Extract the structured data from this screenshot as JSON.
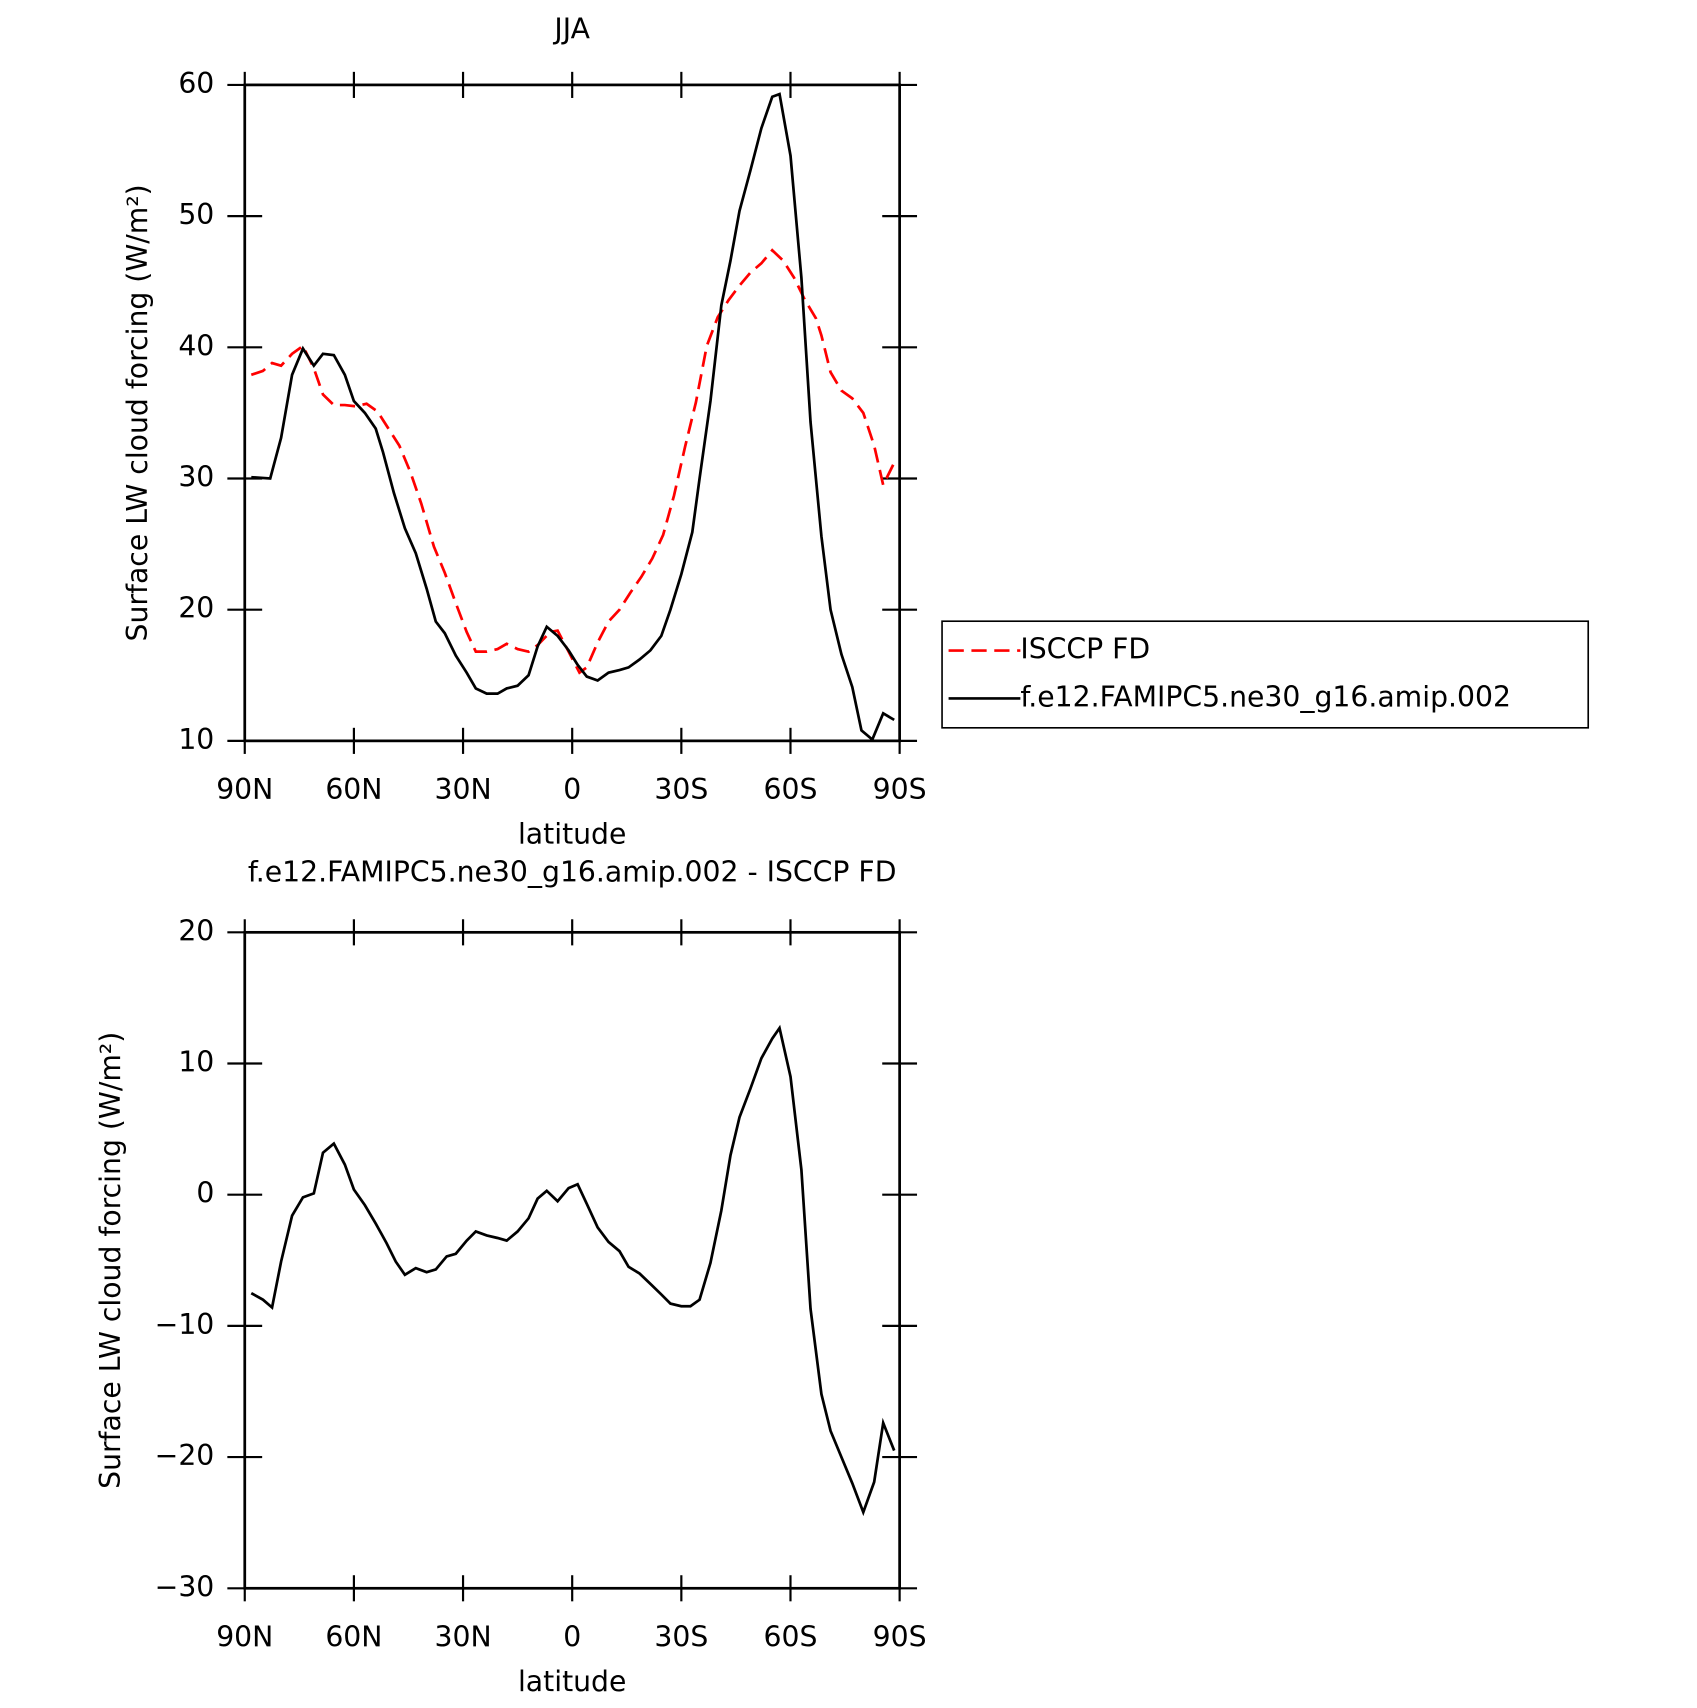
{
  "chart_data": [
    {
      "type": "line",
      "title": "JJA",
      "xlabel": "latitude",
      "ylabel": "Surface LW cloud forcing (W/m²)",
      "xlim": [
        90,
        -90
      ],
      "xticks": [
        {
          "value": 90,
          "label": "90N"
        },
        {
          "value": 60,
          "label": "60N"
        },
        {
          "value": 30,
          "label": "30N"
        },
        0,
        {
          "value": -30,
          "label": "30S"
        },
        {
          "value": -60,
          "label": "60S"
        },
        {
          "value": -90,
          "label": "90S"
        }
      ],
      "ylim": [
        10,
        60
      ],
      "yticks": [
        10,
        20,
        30,
        40,
        50,
        60
      ],
      "legend": "outside-right",
      "series": [
        {
          "name": "ISCCP FD",
          "color": "#ff0000",
          "dash": true,
          "x": [
            88.2,
            85,
            82.5,
            80,
            77,
            74,
            71,
            68.5,
            65.5,
            62.5,
            59.5,
            56.5,
            53.5,
            50.5,
            47.5,
            44.5,
            41.5,
            38,
            35,
            32,
            29,
            26.5,
            23.5,
            20.5,
            18,
            15,
            12,
            9.5,
            6,
            4,
            1,
            -2,
            -4,
            -7,
            -10,
            -13,
            -16,
            -19,
            -22,
            -25,
            -28,
            -31,
            -34,
            -37,
            -40,
            -43,
            -46,
            -49,
            -52,
            -55,
            -58,
            -61,
            -64,
            -67,
            -68.5,
            -71,
            -74,
            -77,
            -80,
            -83,
            -85.5,
            -88.5
          ],
          "values": [
            37.9,
            38.2,
            38.8,
            38.6,
            39.5,
            40.1,
            38.4,
            36.4,
            35.6,
            35.6,
            35.5,
            35.7,
            35.1,
            33.8,
            32.5,
            30.5,
            28.1,
            24.8,
            22.8,
            20.5,
            18.3,
            16.8,
            16.8,
            17,
            17.4,
            17,
            16.8,
            17.3,
            18.3,
            18.4,
            16.8,
            15.2,
            15.6,
            17.5,
            19.1,
            20,
            21.3,
            22.5,
            23.9,
            25.7,
            28.7,
            32.4,
            35.8,
            40.1,
            42.3,
            43.6,
            44.7,
            45.7,
            46.4,
            47.4,
            46.6,
            45.3,
            43.6,
            42.2,
            40.9,
            38.1,
            36.7,
            36.1,
            35,
            32.5,
            29.5,
            31.2
          ]
        },
        {
          "name": "f.e12.FAMIPC5.ne30_g16.amip.002",
          "color": "#000000",
          "dash": false,
          "x": [
            88.2,
            83,
            80,
            77,
            74,
            71,
            68.5,
            65.5,
            62.5,
            60,
            57,
            54,
            52,
            49,
            46,
            43,
            40,
            37.5,
            35,
            32,
            29,
            26.5,
            23.5,
            20.5,
            18,
            15,
            12,
            9.5,
            7,
            4,
            1,
            -1.5,
            -4,
            -7,
            -10,
            -13,
            -15.5,
            -18.5,
            -21.5,
            -24.5,
            -27,
            -30,
            -33,
            -35,
            -38,
            -41,
            -43.5,
            -46,
            -49,
            -52,
            -55,
            -57,
            -60,
            -63,
            -65.5,
            -68.5,
            -71,
            -74,
            -77,
            -79.5,
            -82.5,
            -85.5,
            -88.5
          ],
          "values": [
            30.1,
            30,
            33.1,
            37.9,
            39.9,
            38.6,
            39.5,
            39.4,
            37.9,
            35.9,
            35,
            33.8,
            32,
            28.9,
            26.2,
            24.3,
            21.6,
            19.1,
            18.2,
            16.5,
            15.2,
            14,
            13.6,
            13.6,
            14,
            14.2,
            15,
            17.2,
            18.7,
            18,
            16.9,
            15.8,
            14.9,
            14.6,
            15.2,
            15.4,
            15.6,
            16.2,
            16.9,
            18,
            20,
            22.7,
            25.9,
            30,
            35.9,
            43.2,
            46.6,
            50.4,
            53.5,
            56.7,
            59.1,
            59.3,
            54.6,
            45.3,
            34.3,
            25.6,
            20,
            16.6,
            14.1,
            10.8,
            10.1,
            12.1,
            11.6
          ]
        }
      ]
    },
    {
      "type": "line",
      "title": "f.e12.FAMIPC5.ne30_g16.amip.002 - ISCCP FD",
      "xlabel": "latitude",
      "ylabel": "Surface LW cloud forcing (W/m²)",
      "xlim": [
        90,
        -90
      ],
      "xticks": [
        {
          "value": 90,
          "label": "90N"
        },
        {
          "value": 60,
          "label": "60N"
        },
        {
          "value": 30,
          "label": "30N"
        },
        0,
        {
          "value": -30,
          "label": "30S"
        },
        {
          "value": -60,
          "label": "60S"
        },
        {
          "value": -90,
          "label": "90S"
        }
      ],
      "ylim": [
        -30,
        20
      ],
      "yticks": [
        {
          "value": -30,
          "label": "−30"
        },
        {
          "value": -20,
          "label": "−20"
        },
        {
          "value": -10,
          "label": "−10"
        },
        0,
        10,
        20
      ],
      "series": [
        {
          "color": "#000000",
          "dash": false,
          "x": [
            88.2,
            85,
            82.5,
            80,
            77,
            74,
            71,
            68.5,
            65.5,
            62.5,
            60,
            57,
            54,
            51,
            48.5,
            46,
            43,
            40,
            37.5,
            34.5,
            32,
            29,
            26.5,
            23.5,
            20.5,
            18,
            15,
            12,
            9.5,
            7,
            4,
            1,
            -1.5,
            -4,
            -7,
            -10,
            -13,
            -15.5,
            -18.5,
            -21.5,
            -24.5,
            -27,
            -30,
            -32.5,
            -35,
            -38,
            -41,
            -43.5,
            -46,
            -49,
            -52,
            -55,
            -57,
            -60,
            -63,
            -65.5,
            -68.5,
            -71,
            -74,
            -77,
            -80,
            -83,
            -85.5,
            -88.5
          ],
          "values": [
            -7.5,
            -8,
            -8.6,
            -5.1,
            -1.6,
            -0.2,
            0.1,
            3.2,
            3.9,
            2.3,
            0.4,
            -0.8,
            -2.2,
            -3.7,
            -5.1,
            -6.1,
            -5.6,
            -5.9,
            -5.7,
            -4.7,
            -4.5,
            -3.5,
            -2.8,
            -3.1,
            -3.3,
            -3.5,
            -2.8,
            -1.8,
            -0.3,
            0.3,
            -0.5,
            0.5,
            0.8,
            -0.7,
            -2.5,
            -3.6,
            -4.3,
            -5.5,
            -6,
            -6.8,
            -7.6,
            -8.3,
            -8.5,
            -8.5,
            -8,
            -5.2,
            -1.2,
            3,
            5.9,
            8.1,
            10.4,
            11.9,
            12.7,
            9,
            1.9,
            -8.7,
            -15.2,
            -18,
            -20,
            -22,
            -24.2,
            -21.9,
            -17.4,
            -19.5
          ]
        }
      ]
    }
  ]
}
